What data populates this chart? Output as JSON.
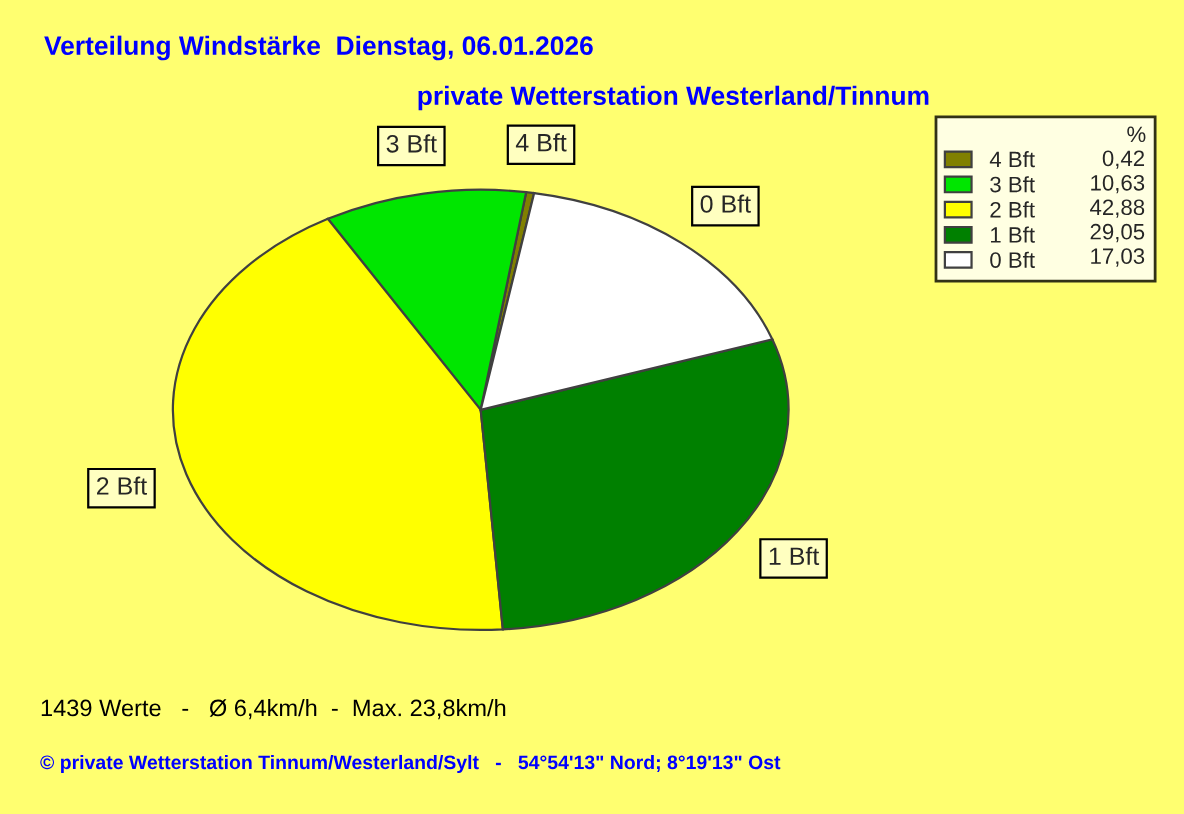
{
  "chart_data": {
    "type": "pie",
    "title": "Verteilung Windstärke  Dienstag, 06.01.2026",
    "subtitle": "private Wetterstation Westerland/Tinnum",
    "categories": [
      "4 Bft",
      "3 Bft",
      "2 Bft",
      "1 Bft",
      "0 Bft"
    ],
    "values": [
      0.42,
      10.63,
      42.88,
      29.05,
      17.03
    ],
    "value_labels": [
      "0,42",
      "10,63",
      "42,88",
      "29,05",
      "17,03"
    ],
    "colors": [
      "#808000",
      "#00e600",
      "#ffff00",
      "#008000",
      "#ffffff"
    ],
    "legend_title": "%",
    "legend": "top right",
    "annotations": [
      "1439 Werte   -   Ø 6,4km/h  -  Max. 23,8km/h",
      "© private Wetterstation Tinnum/Westerland/Sylt   -   54°54'13\" Nord; 8°19'13\" Ost"
    ]
  }
}
